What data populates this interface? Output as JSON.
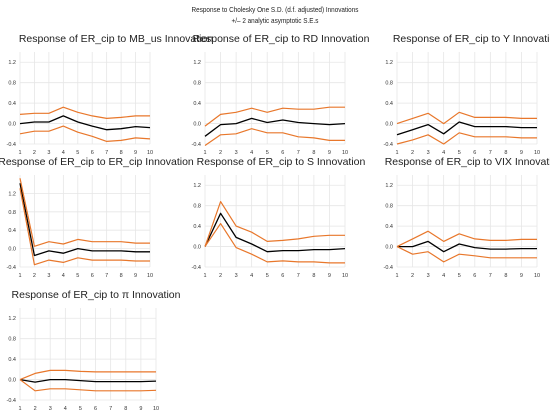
{
  "header": {
    "title": "Response to Cholesky One S.D. (d.f. adjusted) Innovations",
    "subtitle": "+/– 2 analytic asymptotic S.E.s"
  },
  "colors": {
    "response": "#000000",
    "band": "#E8772B",
    "grid": "#e6e6e6",
    "axis_text": "#333333"
  },
  "chart_data": [
    {
      "type": "line",
      "title": "Response of ER_cip to MB_us Innovation",
      "x": [
        1,
        2,
        3,
        4,
        5,
        6,
        7,
        8,
        9,
        10
      ],
      "ylim": [
        -0.4,
        1.4
      ],
      "yticks": [
        -0.4,
        0.0,
        0.4,
        0.8,
        1.2
      ],
      "grid": true,
      "series": [
        {
          "role": "response",
          "values": [
            0.0,
            0.03,
            0.03,
            0.15,
            0.03,
            -0.05,
            -0.12,
            -0.1,
            -0.06,
            -0.08
          ]
        },
        {
          "role": "upper",
          "values": [
            0.18,
            0.2,
            0.2,
            0.32,
            0.22,
            0.15,
            0.1,
            0.12,
            0.15,
            0.15
          ]
        },
        {
          "role": "lower",
          "values": [
            -0.2,
            -0.15,
            -0.15,
            -0.05,
            -0.17,
            -0.25,
            -0.35,
            -0.33,
            -0.28,
            -0.3
          ]
        }
      ]
    },
    {
      "type": "line",
      "title": "Response of ER_cip to RD Innovation",
      "x": [
        1,
        2,
        3,
        4,
        5,
        6,
        7,
        8,
        9,
        10
      ],
      "ylim": [
        -0.4,
        1.4
      ],
      "yticks": [
        -0.4,
        0.0,
        0.4,
        0.8,
        1.2
      ],
      "grid": true,
      "series": [
        {
          "role": "response",
          "values": [
            -0.25,
            -0.02,
            0.0,
            0.1,
            0.02,
            0.07,
            0.02,
            0.0,
            -0.02,
            0.0
          ]
        },
        {
          "role": "upper",
          "values": [
            -0.05,
            0.18,
            0.22,
            0.3,
            0.22,
            0.3,
            0.28,
            0.28,
            0.32,
            0.32
          ]
        },
        {
          "role": "lower",
          "values": [
            -0.43,
            -0.22,
            -0.2,
            -0.1,
            -0.18,
            -0.18,
            -0.26,
            -0.28,
            -0.33,
            -0.33
          ]
        }
      ]
    },
    {
      "type": "line",
      "title": "Response of ER_cip to Y Innovation",
      "x": [
        1,
        2,
        3,
        4,
        5,
        6,
        7,
        8,
        9,
        10
      ],
      "ylim": [
        -0.4,
        1.4
      ],
      "yticks": [
        -0.4,
        0.0,
        0.4,
        0.8,
        1.2
      ],
      "grid": true,
      "series": [
        {
          "role": "response",
          "values": [
            -0.22,
            -0.12,
            -0.02,
            -0.2,
            0.03,
            -0.06,
            -0.06,
            -0.06,
            -0.08,
            -0.08
          ]
        },
        {
          "role": "upper",
          "values": [
            0.0,
            0.1,
            0.2,
            0.0,
            0.22,
            0.12,
            0.12,
            0.12,
            0.1,
            0.1
          ]
        },
        {
          "role": "lower",
          "values": [
            -0.4,
            -0.32,
            -0.22,
            -0.4,
            -0.18,
            -0.26,
            -0.26,
            -0.26,
            -0.28,
            -0.28
          ]
        }
      ]
    },
    {
      "type": "line",
      "title": "Response of ER_cip to ER_cip Innovation",
      "x": [
        1,
        2,
        3,
        4,
        5,
        6,
        7,
        8,
        9,
        10
      ],
      "ylim": [
        -0.4,
        1.6
      ],
      "yticks": [
        -0.4,
        0.0,
        0.4,
        0.8,
        1.2
      ],
      "grid": true,
      "series": [
        {
          "role": "response",
          "values": [
            1.42,
            -0.15,
            -0.05,
            -0.1,
            0.0,
            -0.05,
            -0.05,
            -0.05,
            -0.07,
            -0.07
          ]
        },
        {
          "role": "upper",
          "values": [
            1.53,
            0.05,
            0.15,
            0.1,
            0.2,
            0.15,
            0.15,
            0.15,
            0.12,
            0.12
          ]
        },
        {
          "role": "lower",
          "values": [
            1.31,
            -0.35,
            -0.25,
            -0.3,
            -0.2,
            -0.25,
            -0.25,
            -0.25,
            -0.27,
            -0.27
          ]
        }
      ]
    },
    {
      "type": "line",
      "title": "Response of ER_cip to S Innovation",
      "x": [
        1,
        2,
        3,
        4,
        5,
        6,
        7,
        8,
        9,
        10
      ],
      "ylim": [
        -0.4,
        1.4
      ],
      "yticks": [
        -0.4,
        0.0,
        0.4,
        0.8,
        1.2
      ],
      "grid": true,
      "series": [
        {
          "role": "response",
          "values": [
            0.0,
            0.65,
            0.18,
            0.05,
            -0.1,
            -0.08,
            -0.08,
            -0.06,
            -0.06,
            -0.04
          ]
        },
        {
          "role": "upper",
          "values": [
            0.0,
            0.88,
            0.4,
            0.28,
            0.1,
            0.12,
            0.15,
            0.2,
            0.22,
            0.22
          ]
        },
        {
          "role": "lower",
          "values": [
            0.0,
            0.45,
            -0.02,
            -0.15,
            -0.3,
            -0.28,
            -0.3,
            -0.3,
            -0.32,
            -0.32
          ]
        }
      ]
    },
    {
      "type": "line",
      "title": "Response of ER_cip to VIX Innovation",
      "x": [
        1,
        2,
        3,
        4,
        5,
        6,
        7,
        8,
        9,
        10
      ],
      "ylim": [
        -0.4,
        1.4
      ],
      "yticks": [
        -0.4,
        0.0,
        0.4,
        0.8,
        1.2
      ],
      "grid": true,
      "series": [
        {
          "role": "response",
          "values": [
            0.0,
            0.0,
            0.1,
            -0.1,
            0.05,
            -0.02,
            -0.05,
            -0.05,
            -0.04,
            -0.04
          ]
        },
        {
          "role": "upper",
          "values": [
            0.0,
            0.15,
            0.3,
            0.1,
            0.25,
            0.15,
            0.12,
            0.12,
            0.14,
            0.14
          ]
        },
        {
          "role": "lower",
          "values": [
            0.0,
            -0.15,
            -0.1,
            -0.3,
            -0.15,
            -0.18,
            -0.22,
            -0.22,
            -0.22,
            -0.22
          ]
        }
      ]
    },
    {
      "type": "line",
      "title": "Response of ER_cip to π Innovation",
      "x": [
        1,
        2,
        3,
        4,
        5,
        6,
        7,
        8,
        9,
        10
      ],
      "ylim": [
        -0.4,
        1.4
      ],
      "yticks": [
        -0.4,
        0.0,
        0.4,
        0.8,
        1.2
      ],
      "grid": true,
      "series": [
        {
          "role": "response",
          "values": [
            0.0,
            -0.05,
            0.0,
            0.0,
            -0.02,
            -0.04,
            -0.04,
            -0.04,
            -0.04,
            -0.03
          ]
        },
        {
          "role": "upper",
          "values": [
            0.0,
            0.12,
            0.18,
            0.18,
            0.16,
            0.15,
            0.15,
            0.15,
            0.15,
            0.15
          ]
        },
        {
          "role": "lower",
          "values": [
            0.0,
            -0.22,
            -0.18,
            -0.18,
            -0.2,
            -0.22,
            -0.22,
            -0.22,
            -0.22,
            -0.21
          ]
        }
      ]
    }
  ]
}
